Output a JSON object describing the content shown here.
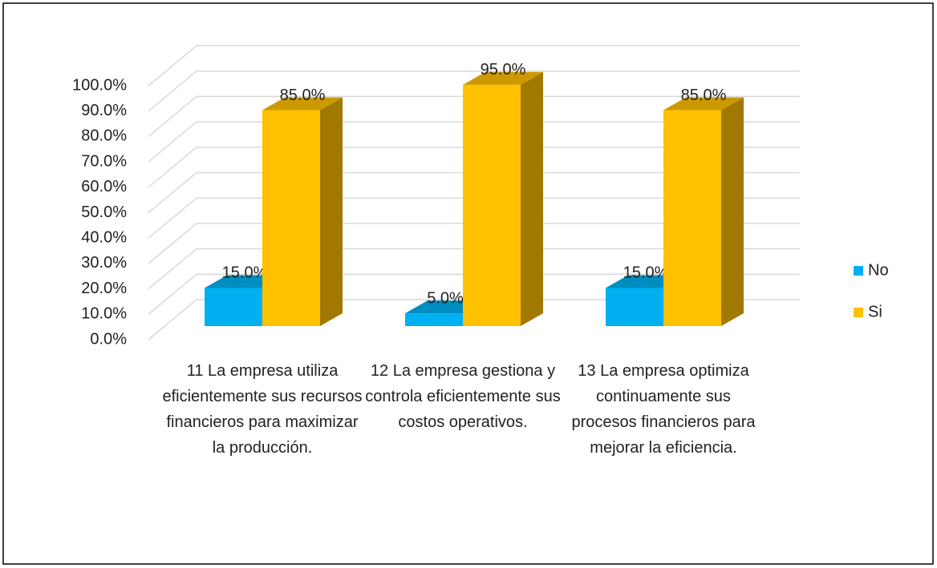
{
  "chart_data": {
    "type": "bar3d",
    "categories": [
      "11 La empresa utiliza eficientemente sus recursos financieros para maximizar la producción.",
      "12 La empresa gestiona y controla eficientemente sus costos operativos.",
      "13 La empresa optimiza continuamente sus procesos financieros para mejorar la eficiencia."
    ],
    "series": [
      {
        "name": "No",
        "color": "#00b0f0",
        "values": [
          15,
          5,
          15
        ],
        "value_labels": [
          "15.0%",
          "5.0%",
          "15.0%"
        ]
      },
      {
        "name": "Si",
        "color": "#ffc000",
        "values": [
          85,
          95,
          85
        ],
        "value_labels": [
          "85.0%",
          "95.0%",
          "85.0%"
        ]
      }
    ],
    "ylim": [
      0,
      100
    ],
    "yticks": [
      {
        "value": 0,
        "label": "0.0%"
      },
      {
        "value": 10,
        "label": "10.0%"
      },
      {
        "value": 20,
        "label": "20.0%"
      },
      {
        "value": 30,
        "label": "30.0%"
      },
      {
        "value": 40,
        "label": "40.0%"
      },
      {
        "value": 50,
        "label": "50.0%"
      },
      {
        "value": 60,
        "label": "60.0%"
      },
      {
        "value": 70,
        "label": "70.0%"
      },
      {
        "value": 80,
        "label": "80.0%"
      },
      {
        "value": 90,
        "label": "90.0%"
      },
      {
        "value": 100,
        "label": "100.0%"
      }
    ],
    "grid": true,
    "legend": "right"
  }
}
